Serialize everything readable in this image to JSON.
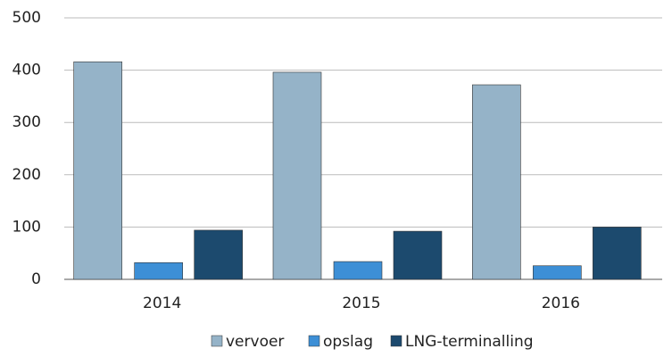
{
  "chart_data": {
    "type": "bar",
    "categories": [
      "2014",
      "2015",
      "2016"
    ],
    "series": [
      {
        "name": "vervoer",
        "color": "#95b3c8",
        "values": [
          416,
          396,
          372
        ]
      },
      {
        "name": "opslag",
        "color": "#3d8fd6",
        "values": [
          32,
          34,
          26
        ]
      },
      {
        "name": "LNG-terminalling",
        "color": "#1c4a6e",
        "values": [
          94,
          92,
          100
        ]
      }
    ],
    "ylim": [
      0,
      500
    ],
    "yticks": [
      0,
      100,
      200,
      300,
      400,
      500
    ],
    "grid": true,
    "legend": "bottom"
  }
}
